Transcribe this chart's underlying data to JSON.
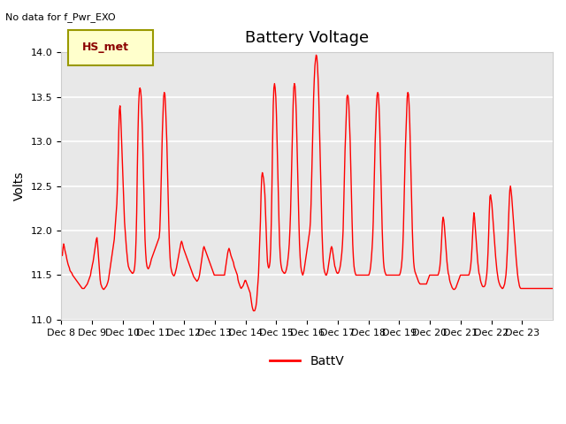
{
  "title": "Battery Voltage",
  "ylabel": "Volts",
  "annotation": "No data for f_Pwr_EXO",
  "legend_label": "BattV",
  "legend_patch_label": "HS_met",
  "ylim": [
    11.0,
    14.0
  ],
  "yticks": [
    11.0,
    11.5,
    12.0,
    12.5,
    13.0,
    13.5,
    14.0
  ],
  "xtick_labels": [
    "Dec 8",
    "Dec 9",
    "Dec 10",
    "Dec 11",
    "Dec 12",
    "Dec 13",
    "Dec 14",
    "Dec 15",
    "Dec 16",
    "Dec 17",
    "Dec 18",
    "Dec 19",
    "Dec 20",
    "Dec 21",
    "Dec 22",
    "Dec 23"
  ],
  "line_color": "red",
  "bg_color": "#e8e8e8",
  "grid_color": "white",
  "title_fontsize": 13,
  "label_fontsize": 10,
  "tick_fontsize": 8
}
